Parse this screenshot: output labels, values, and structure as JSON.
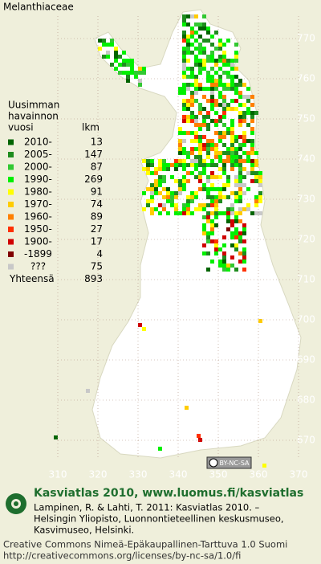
{
  "title": "Melanthiaceae",
  "legend": {
    "heading": [
      "Uusimman",
      "havainnon",
      "vuosi"
    ],
    "count_heading": "lkm",
    "rows": [
      {
        "label": "2010-",
        "count": 13,
        "color": "#006400"
      },
      {
        "label": "2005-",
        "count": 147,
        "color": "#1e8c1e"
      },
      {
        "label": "2000-",
        "count": 87,
        "color": "#32c832"
      },
      {
        "label": "1990-",
        "count": 269,
        "color": "#00f000"
      },
      {
        "label": "1980-",
        "count": 91,
        "color": "#ffff00"
      },
      {
        "label": "1970-",
        "count": 74,
        "color": "#ffcc00"
      },
      {
        "label": "1960-",
        "count": 89,
        "color": "#ff8000"
      },
      {
        "label": "1950-",
        "count": 27,
        "color": "#ff3000"
      },
      {
        "label": "1900-",
        "count": 17,
        "color": "#d00000"
      },
      {
        "label": "-1899",
        "count": 4,
        "color": "#800000"
      },
      {
        "label": "???",
        "count": 75,
        "color": "#c8c8c8"
      }
    ],
    "total_label": "Yhteensä",
    "total": 893
  },
  "grid": {
    "yticks": [
      770,
      760,
      750,
      740,
      730,
      720,
      710,
      700,
      690,
      680,
      670
    ],
    "xticks": [
      310,
      320,
      330,
      340,
      350,
      360,
      370
    ]
  },
  "badge": "BY-NC-SA",
  "credits": {
    "heading": "Kasviatlas 2010, www.luomus.fi/kasviatlas",
    "citation": [
      "Lampinen, R. & Lahti, T. 2011: Kasviatlas 2010. –",
      "Helsingin Yliopisto, Luonnontieteellinen keskusmuseo,",
      "Kasvimuseo, Helsinki."
    ],
    "license": [
      "Creative Commons Nimeä-Epäkaupallinen-Tarttuva 1.0 Suomi",
      "http://creativecommons.org/licenses/by-nc-sa/1.0/fi"
    ]
  }
}
